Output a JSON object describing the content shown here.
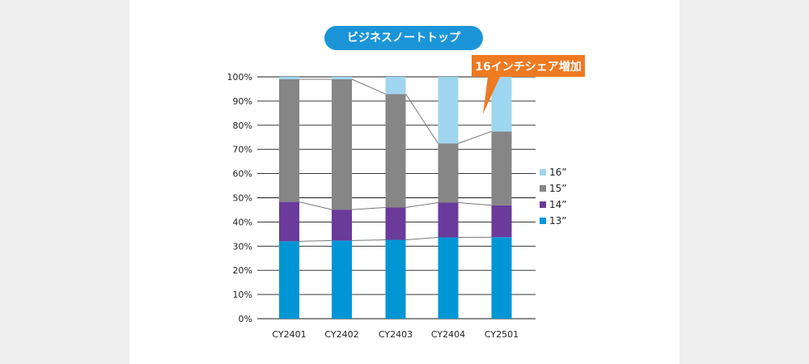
{
  "chart_data": {
    "type": "bar",
    "stacked": true,
    "title": "ビジネスノートトップ",
    "categories": [
      "CY2401",
      "CY2402",
      "CY2403",
      "CY2404",
      "CY2501"
    ],
    "series": [
      {
        "name": "13”",
        "color": "#0096d6",
        "values": [
          32,
          32.3,
          32.6,
          33.6,
          33.7
        ]
      },
      {
        "name": "14”",
        "color": "#6a3b9b",
        "values": [
          16.3,
          12.8,
          13.4,
          14.4,
          13.2
        ]
      },
      {
        "name": "15”",
        "color": "#868686",
        "values": [
          50.7,
          53.9,
          46.9,
          24.5,
          30.5
        ]
      },
      {
        "name": "16”",
        "color": "#9fd6ef",
        "values": [
          1,
          1,
          7.1,
          27.5,
          22.6
        ]
      }
    ],
    "ylim": [
      0,
      100
    ],
    "yticks": [
      "0%",
      "10%",
      "20%",
      "30%",
      "40%",
      "50%",
      "60%",
      "70%",
      "80%",
      "90%",
      "100%"
    ],
    "grid": true,
    "legend_position": "right",
    "connector_lines": true,
    "annotation": {
      "text": "16インチシェア増加",
      "color": "#ee7a22"
    }
  }
}
